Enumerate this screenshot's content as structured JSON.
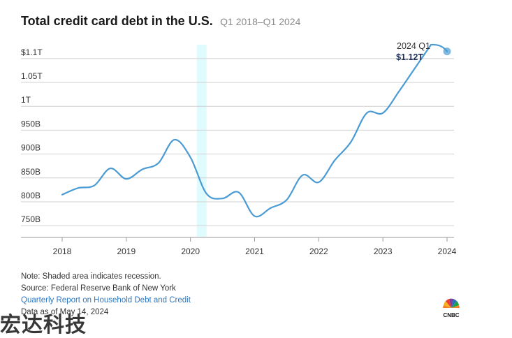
{
  "header": {
    "title": "Total credit card debt in the U.S.",
    "subtitle": "Q1 2018–Q1 2024"
  },
  "chart_data": {
    "type": "line",
    "title": "Total credit card debt in the U.S.",
    "subtitle": "Q1 2018–Q1 2024",
    "xlabel": "",
    "ylabel": "",
    "x_ticks": [
      "2018",
      "2019",
      "2020",
      "2021",
      "2022",
      "2023",
      "2024"
    ],
    "y_ticks": [
      "750B",
      "800B",
      "850B",
      "900B",
      "950B",
      "1T",
      "1.05T",
      "$1.1T"
    ],
    "y_tick_values": [
      750,
      800,
      850,
      900,
      950,
      1000,
      1050,
      1100
    ],
    "ylim": [
      740,
      1110
    ],
    "xlim": [
      2018,
      2024
    ],
    "grid": "horizontal",
    "recession": {
      "start": 2020.1,
      "end": 2020.25
    },
    "series": [
      {
        "color": "#4a9bd3",
        "x": [
          2018.0,
          2018.25,
          2018.5,
          2018.75,
          2019.0,
          2019.25,
          2019.5,
          2019.75,
          2020.0,
          2020.25,
          2020.5,
          2020.75,
          2021.0,
          2021.25,
          2021.5,
          2021.75,
          2022.0,
          2022.25,
          2022.5,
          2022.75,
          2023.0,
          2023.25,
          2023.5,
          2023.75
        ],
        "values": [
          815,
          829,
          834,
          870,
          848,
          868,
          881,
          930,
          893,
          817,
          807,
          820,
          770,
          787,
          804,
          856,
          841,
          887,
          925,
          986,
          986,
          1031,
          1080,
          1129
        ]
      }
    ],
    "final_point": {
      "x": 2024.0,
      "value": 1115
    },
    "annotation": {
      "label": "2024 Q1",
      "value_label": "$1.12T"
    }
  },
  "notes": {
    "note": "Note: Shaded area indicates recession.",
    "source": "Source: Federal Reserve Bank of New York",
    "report": "Quarterly Report on Household Debt and Credit",
    "data_as_of": "Data as of May 14, 2024"
  },
  "logo": {
    "text": "CNBC"
  },
  "watermark": {
    "text": "宏达科技"
  },
  "colors": {
    "line": "#4a9bd3",
    "recession": "#e0fbfd",
    "grid": "#d0d0d0",
    "link": "#2b78c4"
  }
}
